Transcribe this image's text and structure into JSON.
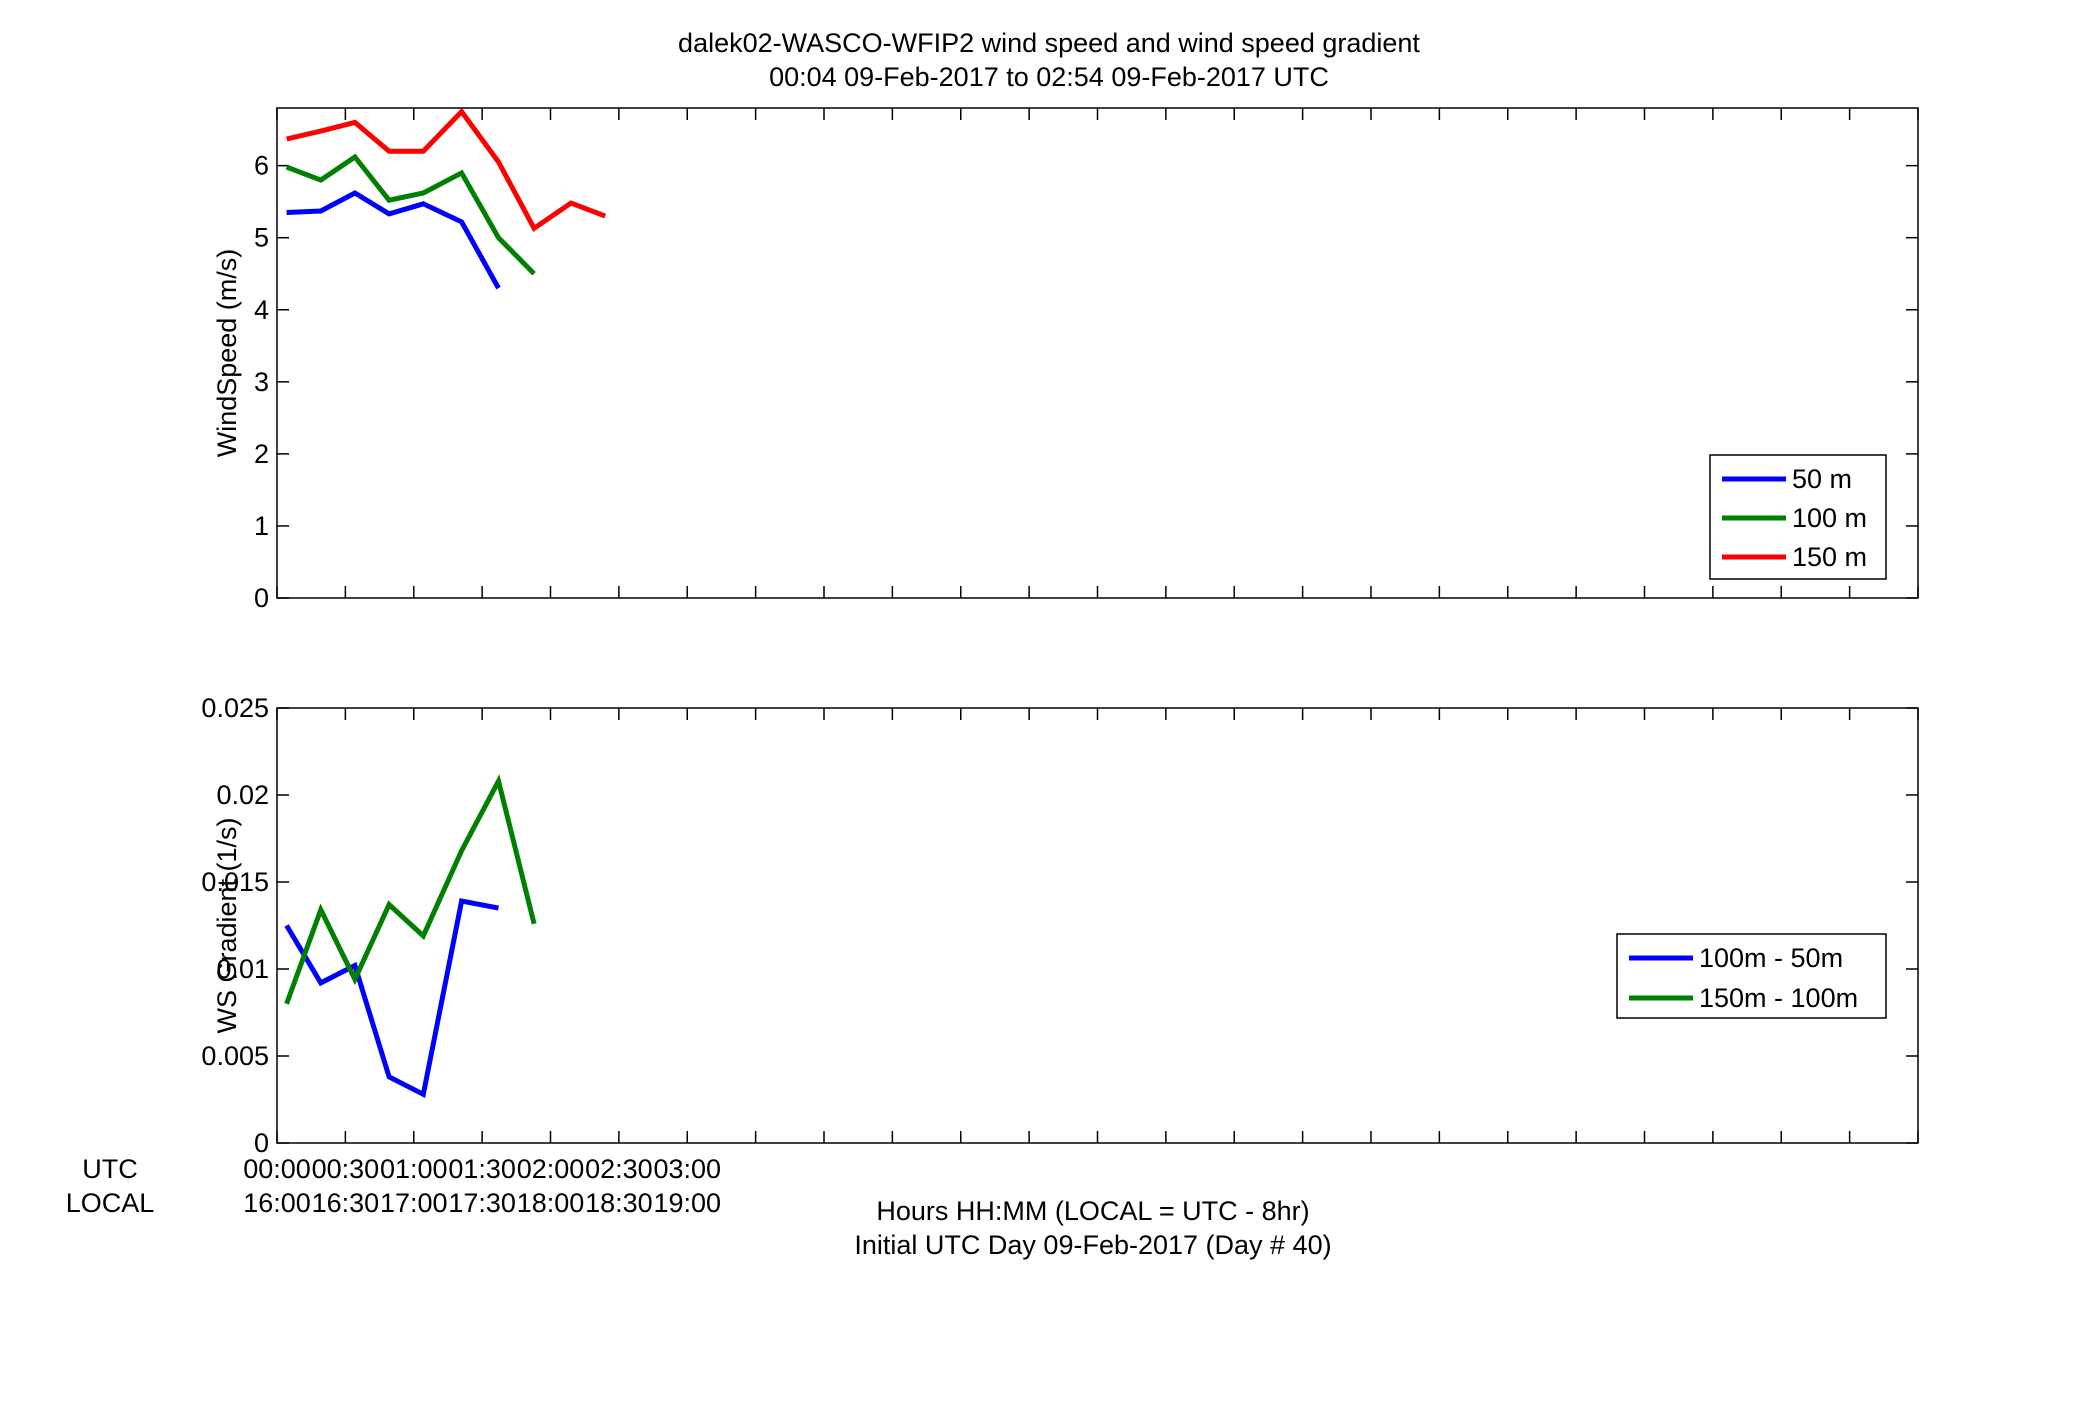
{
  "figure": {
    "title_line1": "dalek02-WASCO-WFIP2  wind speed and wind speed gradient",
    "title_line2": "00:04 09-Feb-2017 to 02:54 09-Feb-2017  UTC",
    "xlabel_line1": "Hours HH:MM  (LOCAL = UTC - 8hr)",
    "xlabel_line2": "Initial UTC Day 09-Feb-2017 (Day # 40)",
    "utc_row_label": "UTC",
    "local_row_label": "LOCAL",
    "utc_ticks": [
      "00:00",
      "00:30",
      "01:00",
      "01:30",
      "02:00",
      "02:30",
      "03:00"
    ],
    "local_ticks": [
      "16:00",
      "16:30",
      "17:00",
      "17:30",
      "18:00",
      "18:30",
      "19:00"
    ]
  },
  "chart_data": [
    {
      "type": "line",
      "ylabel": "WindSpeed (m/s)",
      "xlim_hours": [
        0,
        12
      ],
      "ylim": [
        0,
        6.8
      ],
      "yticks": [
        0,
        1,
        2,
        3,
        4,
        5,
        6
      ],
      "ytick_labels": [
        "0",
        "1",
        "2",
        "3",
        "4",
        "5",
        "6"
      ],
      "legend_position": "lower-right",
      "series": [
        {
          "name": "50 m",
          "color": "#0000ff",
          "x_hours": [
            0.07,
            0.32,
            0.57,
            0.82,
            1.07,
            1.35,
            1.62
          ],
          "values": [
            5.35,
            5.37,
            5.62,
            5.33,
            5.47,
            5.22,
            4.3
          ]
        },
        {
          "name": "100 m",
          "color": "#008000",
          "x_hours": [
            0.07,
            0.32,
            0.57,
            0.82,
            1.07,
            1.35,
            1.62,
            1.88
          ],
          "values": [
            5.98,
            5.8,
            6.12,
            5.52,
            5.62,
            5.9,
            5.0,
            4.5
          ]
        },
        {
          "name": "150 m",
          "color": "#ff0000",
          "x_hours": [
            0.07,
            0.32,
            0.57,
            0.82,
            1.07,
            1.35,
            1.62,
            1.88,
            2.15,
            2.4
          ],
          "values": [
            6.37,
            6.48,
            6.6,
            6.2,
            6.2,
            6.75,
            6.05,
            5.13,
            5.48,
            5.3
          ]
        }
      ]
    },
    {
      "type": "line",
      "ylabel": "WS Gradient (1/s)",
      "xlim_hours": [
        0,
        12
      ],
      "ylim": [
        0,
        0.025
      ],
      "yticks": [
        0,
        0.005,
        0.01,
        0.015,
        0.02,
        0.025
      ],
      "ytick_labels": [
        "0",
        "0.005",
        "0.01",
        "0.015",
        "0.02",
        "0.025"
      ],
      "legend_position": "right",
      "series": [
        {
          "name": "100m - 50m",
          "color": "#0000ff",
          "x_hours": [
            0.07,
            0.32,
            0.57,
            0.82,
            1.07,
            1.35,
            1.62
          ],
          "values": [
            0.0125,
            0.0092,
            0.0102,
            0.0038,
            0.0028,
            0.0139,
            0.0135
          ]
        },
        {
          "name": "150m - 100m",
          "color": "#008000",
          "x_hours": [
            0.07,
            0.32,
            0.57,
            0.82,
            1.07,
            1.35,
            1.62,
            1.88
          ],
          "values": [
            0.008,
            0.0134,
            0.0094,
            0.0137,
            0.0119,
            0.0168,
            0.0208,
            0.0126
          ]
        }
      ]
    }
  ]
}
